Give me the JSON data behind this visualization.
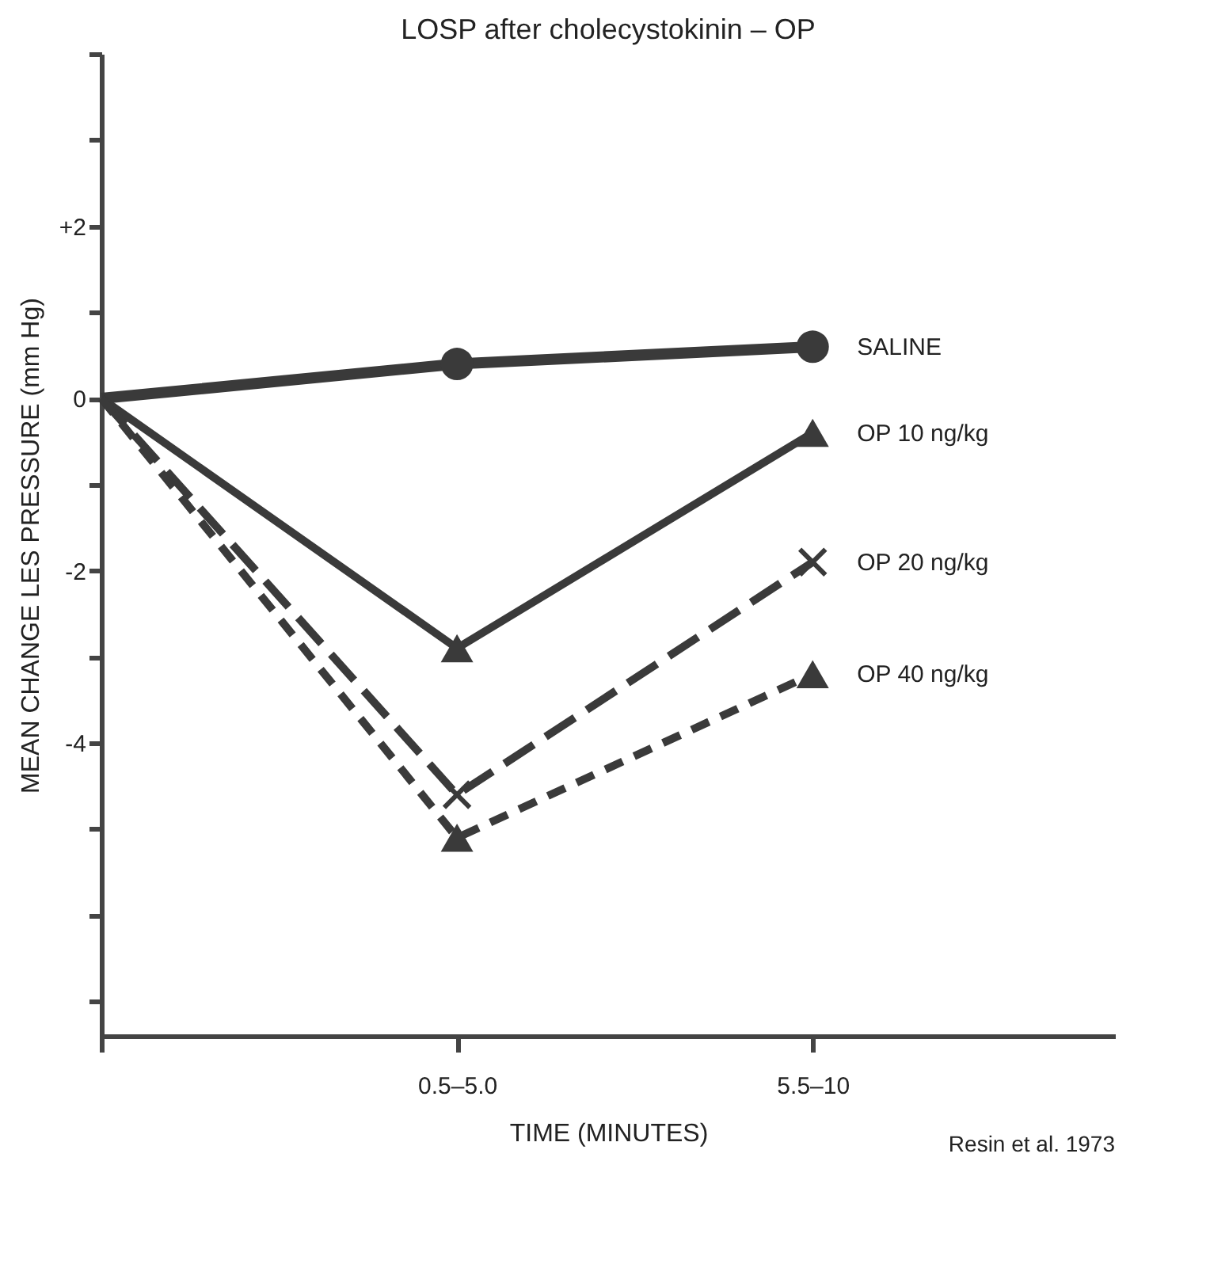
{
  "chart_data": {
    "type": "line",
    "title": "LOSP after cholecystokinin – OP",
    "xlabel": "TIME (MINUTES)",
    "ylabel": "MEAN CHANGE LES PRESSURE (mm Hg)",
    "annotations": [
      "Resin et al. 1973"
    ],
    "categories": [
      null,
      "0.5–5.0",
      "5.5–10"
    ],
    "ylim": [
      -7.4,
      4
    ],
    "yticks": [
      {
        "value": 4,
        "label": null
      },
      {
        "value": 3,
        "label": null
      },
      {
        "value": 2,
        "label": "+2"
      },
      {
        "value": 1,
        "label": null
      },
      {
        "value": 0,
        "label": "0"
      },
      {
        "value": -1,
        "label": null
      },
      {
        "value": -2,
        "label": "-2"
      },
      {
        "value": -3,
        "label": null
      },
      {
        "value": -4,
        "label": "-4"
      },
      {
        "value": -5,
        "label": null
      },
      {
        "value": -6,
        "label": null
      },
      {
        "value": -7,
        "label": null
      }
    ],
    "grid": false,
    "series": [
      {
        "name": "SALINE",
        "color": "#3a3a3a",
        "values": [
          0,
          0.4,
          0.6
        ],
        "marker": "circle",
        "line_style": "solid"
      },
      {
        "name": "OP 10 ng/kg",
        "color": "#3a3a3a",
        "values": [
          0,
          -2.9,
          -0.4
        ],
        "marker": "triangle",
        "line_style": "solid"
      },
      {
        "name": "OP 20 ng/kg",
        "color": "#3a3a3a",
        "values": [
          0,
          -4.6,
          -1.9
        ],
        "marker": "cross",
        "line_style": "dashed"
      },
      {
        "name": "OP 40 ng/kg",
        "color": "#3a3a3a",
        "values": [
          0,
          -5.1,
          -3.2
        ],
        "marker": "triangle",
        "line_style": "dotted"
      }
    ]
  }
}
